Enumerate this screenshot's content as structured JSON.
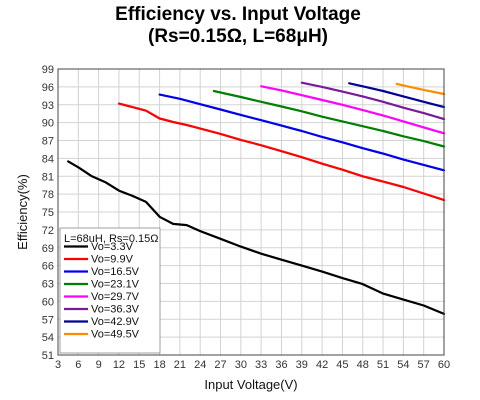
{
  "chart_data": {
    "type": "line",
    "title": "Efficiency vs. Input Voltage",
    "subtitle": "(Rs=0.15Ω, L=68μH)",
    "xlabel": "Input Voltage(V)",
    "ylabel": "Efficiency(%)",
    "xlim": [
      3,
      60
    ],
    "ylim": [
      51,
      99
    ],
    "xticks": [
      3,
      6,
      9,
      12,
      15,
      18,
      21,
      24,
      27,
      30,
      33,
      36,
      39,
      42,
      45,
      48,
      51,
      54,
      57,
      60
    ],
    "yticks": [
      51,
      54,
      57,
      60,
      63,
      66,
      69,
      72,
      75,
      78,
      81,
      84,
      87,
      90,
      93,
      96,
      99
    ],
    "grid": true,
    "legend_position": "bottom-left",
    "legend_title": "L=68uH, Rs=0.15Ω",
    "series": [
      {
        "name": "Vo=3.3V",
        "color": "#000000",
        "x": [
          4.5,
          6,
          8,
          10,
          12,
          14,
          16,
          18,
          20,
          22,
          24,
          27,
          30,
          33,
          36,
          39,
          42,
          45,
          48,
          51,
          54,
          57,
          60
        ],
        "y": [
          83.5,
          82.5,
          81,
          80,
          78.6,
          77.7,
          76.7,
          74.2,
          73.0,
          72.8,
          71.8,
          70.5,
          69.2,
          68.0,
          67.0,
          66.0,
          65.0,
          63.9,
          62.9,
          61.3,
          60.3,
          59.3,
          57.9
        ]
      },
      {
        "name": "Vo=9.9V",
        "color": "#ff0000",
        "x": [
          12,
          14,
          16,
          18,
          20,
          22,
          24,
          27,
          30,
          33,
          36,
          39,
          42,
          45,
          48,
          51,
          54,
          57,
          60
        ],
        "y": [
          93.2,
          92.6,
          92.0,
          90.7,
          90.1,
          89.6,
          89.0,
          88.1,
          87.1,
          86.2,
          85.2,
          84.2,
          83.1,
          82.1,
          81.0,
          80.1,
          79.2,
          78.1,
          77.0
        ]
      },
      {
        "name": "Vo=16.5V",
        "color": "#0000ee",
        "x": [
          18,
          21,
          24,
          27,
          30,
          33,
          36,
          39,
          42,
          45,
          48,
          51,
          54,
          57,
          60
        ],
        "y": [
          94.7,
          94.0,
          93.1,
          92.2,
          91.3,
          90.4,
          89.5,
          88.6,
          87.6,
          86.7,
          85.7,
          84.8,
          83.8,
          82.9,
          82.0
        ]
      },
      {
        "name": "Vo=23.1V",
        "color": "#008000",
        "x": [
          26,
          28,
          30,
          33,
          36,
          39,
          42,
          45,
          48,
          51,
          54,
          57,
          60
        ],
        "y": [
          95.3,
          94.8,
          94.3,
          93.5,
          92.7,
          91.9,
          91.0,
          90.2,
          89.4,
          88.6,
          87.7,
          86.9,
          86.0
        ]
      },
      {
        "name": "Vo=29.7V",
        "color": "#ff00ff",
        "x": [
          33,
          36,
          39,
          42,
          45,
          48,
          51,
          54,
          57,
          60
        ],
        "y": [
          96.1,
          95.4,
          94.6,
          93.8,
          93.0,
          92.1,
          91.2,
          90.2,
          89.2,
          88.2
        ]
      },
      {
        "name": "Vo=36.3V",
        "color": "#7a1a9a",
        "x": [
          39,
          42,
          45,
          48,
          51,
          54,
          57,
          60
        ],
        "y": [
          96.7,
          96.0,
          95.2,
          94.4,
          93.5,
          92.5,
          91.6,
          90.6
        ]
      },
      {
        "name": "Vo=42.9V",
        "color": "#000099",
        "x": [
          46,
          48,
          51,
          54,
          57,
          60
        ],
        "y": [
          96.6,
          96.1,
          95.3,
          94.4,
          93.5,
          92.6
        ]
      },
      {
        "name": "Vo=49.5V",
        "color": "#ff8c00",
        "x": [
          53,
          55,
          57,
          60
        ],
        "y": [
          96.5,
          96.0,
          95.5,
          94.8
        ]
      }
    ]
  }
}
